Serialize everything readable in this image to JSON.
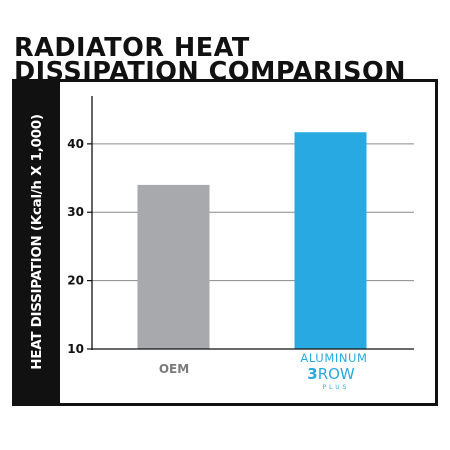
{
  "chart_data": {
    "type": "bar",
    "title_lines": [
      "RADIATOR HEAT",
      "DISSIPATION COMPARISON"
    ],
    "ylabel": "HEAT DISSIPATION (Kcal/h X 1,000)",
    "xlabel": "",
    "ylim": [
      10,
      47
    ],
    "yticks": [
      10,
      20,
      30,
      40
    ],
    "grid": true,
    "categories": [
      "OEM",
      "ALUMINUM 3ROW PLUS"
    ],
    "category_logo": {
      "line1": "ALUMINUM",
      "number": "3",
      "word": "ROW",
      "suffix": "PLUS"
    },
    "values": [
      34,
      41.7
    ],
    "colors": [
      "#a7a9ac",
      "#29a9e1"
    ]
  }
}
